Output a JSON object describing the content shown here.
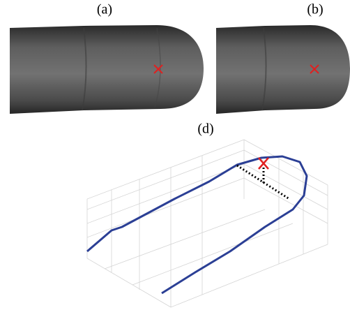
{
  "panels": [
    {
      "label": "(a)"
    },
    {
      "label": "(b)"
    },
    {
      "label": "(d)"
    }
  ]
}
